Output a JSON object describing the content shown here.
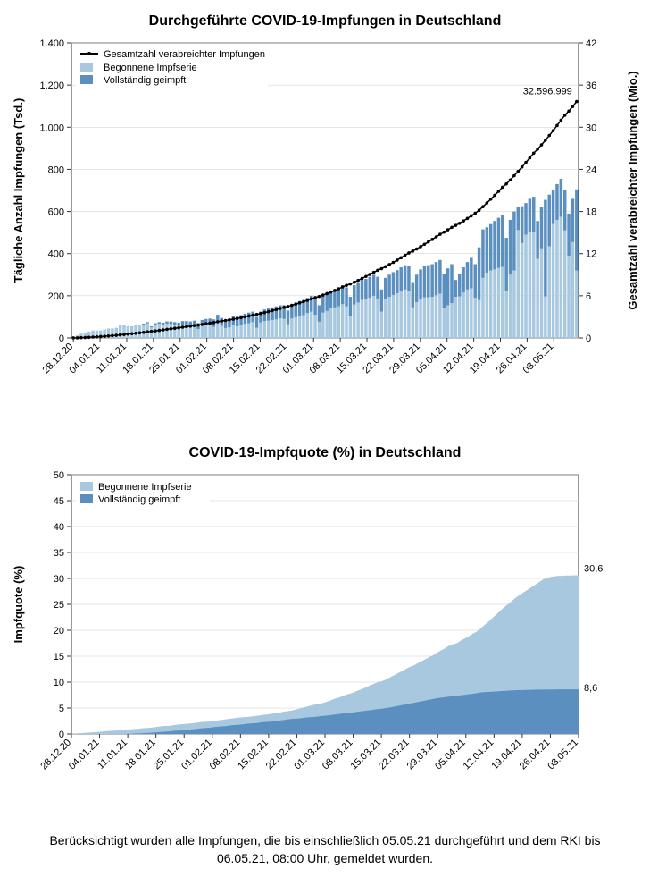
{
  "chart1": {
    "title": "Durchgeführte COVID-19-Impfungen in Deutschland",
    "y_left_label": "Tägliche Anzahl Impfungen (Tsd.)",
    "y_right_label": "Gesamtzahl verabreichter Impfungen (Mio.)",
    "y_left_ticks": [
      0,
      200,
      400,
      600,
      800,
      "1.000",
      "1.200",
      "1.400"
    ],
    "y_left_max": 1400,
    "y_right_ticks": [
      0,
      6,
      12,
      18,
      24,
      30,
      36,
      42
    ],
    "y_right_max": 42,
    "legend": [
      {
        "label": "Gesamtzahl verabreichter Impfungen",
        "type": "line",
        "color": "#000000"
      },
      {
        "label": "Begonnene Impfserie",
        "type": "box",
        "color": "#a8c8e0"
      },
      {
        "label": "Vollständig geimpft",
        "type": "box",
        "color": "#5a8fc0"
      }
    ],
    "annotation_value": "32.596.999",
    "colors": {
      "bar_light": "#a8c8e0",
      "bar_dark": "#5a8fc0",
      "line": "#000000",
      "grid": "#cccccc",
      "axis": "#333333",
      "plot_bg": "#ffffff"
    }
  },
  "chart2": {
    "title": "COVID-19-Impfquote (%) in Deutschland",
    "y_label": "Impfquote (%)",
    "y_ticks": [
      0,
      5,
      10,
      15,
      20,
      25,
      30,
      35,
      40,
      45,
      50
    ],
    "y_max": 50,
    "legend": [
      {
        "label": "Begonnene Impfserie",
        "type": "box",
        "color": "#a8c8e0"
      },
      {
        "label": "Vollständig geimpft",
        "type": "box",
        "color": "#5a8fc0"
      }
    ],
    "annotation_top": "30,6",
    "annotation_bottom": "8,6",
    "colors": {
      "area_light": "#a8c8e0",
      "area_dark": "#5a8fc0",
      "grid": "#cccccc",
      "axis": "#333333"
    }
  },
  "x_labels": [
    "28.12.20",
    "04.01.21",
    "11.01.21",
    "18.01.21",
    "25.01.21",
    "01.02.21",
    "08.02.21",
    "15.02.21",
    "22.02.21",
    "01.03.21",
    "08.03.21",
    "15.03.21",
    "22.03.21",
    "29.03.21",
    "05.04.21",
    "12.04.21",
    "19.04.21",
    "26.04.21",
    "03.05.21"
  ],
  "bars_begun": [
    5,
    12,
    20,
    25,
    30,
    35,
    35,
    35,
    40,
    45,
    45,
    48,
    60,
    60,
    55,
    55,
    62,
    62,
    68,
    75,
    55,
    70,
    75,
    72,
    78,
    78,
    75,
    72,
    80,
    80,
    78,
    82,
    70,
    85,
    90,
    92,
    88,
    110,
    95,
    85,
    90,
    105,
    100,
    108,
    115,
    120,
    125,
    100,
    125,
    135,
    140,
    145,
    150,
    155,
    155,
    130,
    160,
    168,
    175,
    180,
    190,
    200,
    188,
    155,
    200,
    210,
    225,
    230,
    238,
    250,
    240,
    195,
    250,
    260,
    275,
    280,
    290,
    300,
    290,
    230,
    285,
    300,
    312,
    322,
    335,
    345,
    340,
    265,
    300,
    325,
    340,
    345,
    350,
    360,
    370,
    305,
    330,
    350,
    275,
    305,
    335,
    360,
    380,
    350,
    430,
    515,
    525,
    540,
    555,
    570,
    582,
    475,
    560,
    600,
    620,
    625,
    640,
    660,
    670,
    555,
    620,
    655,
    680,
    700,
    730,
    755,
    700,
    590,
    660,
    705
  ],
  "bars_full": [
    0,
    0,
    0,
    0,
    0,
    0,
    0,
    0,
    0,
    0,
    0,
    0,
    0,
    0,
    1,
    1,
    2,
    2,
    5,
    5,
    5,
    8,
    8,
    10,
    10,
    12,
    15,
    15,
    18,
    20,
    22,
    25,
    28,
    28,
    30,
    32,
    35,
    35,
    38,
    38,
    40,
    42,
    45,
    48,
    48,
    50,
    50,
    52,
    52,
    55,
    58,
    60,
    62,
    62,
    65,
    65,
    68,
    70,
    70,
    72,
    72,
    75,
    78,
    78,
    80,
    82,
    85,
    85,
    88,
    90,
    90,
    90,
    92,
    92,
    95,
    98,
    100,
    100,
    105,
    105,
    100,
    105,
    108,
    110,
    112,
    115,
    118,
    120,
    130,
    140,
    148,
    152,
    155,
    158,
    160,
    165,
    175,
    185,
    80,
    108,
    120,
    130,
    145,
    160,
    250,
    230,
    215,
    220,
    230,
    238,
    245,
    250,
    260,
    280,
    108,
    175,
    150,
    160,
    170,
    180,
    195,
    458,
    245,
    160,
    170,
    180,
    190,
    200,
    205,
    385
  ],
  "area_begun": [
    0,
    0.1,
    0.15,
    0.2,
    0.25,
    0.3,
    0.35,
    0.4,
    0.5,
    0.55,
    0.6,
    0.65,
    0.7,
    0.8,
    0.85,
    0.9,
    0.95,
    1,
    1.1,
    1.15,
    1.2,
    1.3,
    1.4,
    1.5,
    1.55,
    1.6,
    1.7,
    1.8,
    1.9,
    1.95,
    2,
    2.1,
    2.2,
    2.3,
    2.35,
    2.4,
    2.5,
    2.6,
    2.7,
    2.8,
    2.9,
    3,
    3.1,
    3.2,
    3.25,
    3.3,
    3.4,
    3.5,
    3.6,
    3.7,
    3.8,
    3.9,
    4,
    4.1,
    4.3,
    4.4,
    4.5,
    4.7,
    4.9,
    5.1,
    5.3,
    5.5,
    5.7,
    5.8,
    6,
    6.2,
    6.5,
    6.8,
    7,
    7.3,
    7.6,
    7.8,
    8.1,
    8.4,
    8.7,
    9,
    9.4,
    9.7,
    10,
    10.2,
    10.5,
    10.9,
    11.3,
    11.7,
    12.1,
    12.5,
    12.9,
    13.2,
    13.6,
    14,
    14.4,
    14.8,
    15.2,
    15.7,
    16.1,
    16.5,
    17,
    17.3,
    17.5,
    18,
    18.4,
    18.8,
    19.3,
    19.7,
    20.3,
    21,
    21.6,
    22.3,
    23,
    23.7,
    24.4,
    25,
    25.6,
    26.3,
    26.8,
    27.3,
    27.8,
    28.3,
    28.8,
    29.3,
    29.8,
    30.1,
    30.3,
    30.4,
    30.5,
    30.5,
    30.55,
    30.55,
    30.6,
    30.6
  ],
  "area_full": [
    0,
    0,
    0,
    0,
    0,
    0,
    0,
    0,
    0,
    0,
    0,
    0,
    0,
    0,
    0.02,
    0.05,
    0.08,
    0.1,
    0.15,
    0.2,
    0.22,
    0.3,
    0.35,
    0.4,
    0.45,
    0.5,
    0.6,
    0.65,
    0.7,
    0.8,
    0.85,
    0.9,
    1,
    1.1,
    1.15,
    1.2,
    1.3,
    1.4,
    1.45,
    1.5,
    1.6,
    1.7,
    1.75,
    1.8,
    1.9,
    2,
    2.05,
    2.1,
    2.2,
    2.3,
    2.35,
    2.4,
    2.5,
    2.6,
    2.7,
    2.8,
    2.9,
    2.95,
    3,
    3.1,
    3.2,
    3.25,
    3.3,
    3.4,
    3.5,
    3.55,
    3.65,
    3.75,
    3.85,
    3.95,
    4,
    4.1,
    4.2,
    4.3,
    4.4,
    4.5,
    4.6,
    4.7,
    4.8,
    4.85,
    5,
    5.1,
    5.25,
    5.4,
    5.55,
    5.7,
    5.85,
    6,
    6.15,
    6.3,
    6.45,
    6.6,
    6.75,
    6.9,
    7,
    7.1,
    7.2,
    7.3,
    7.35,
    7.45,
    7.55,
    7.65,
    7.75,
    7.85,
    8,
    8.05,
    8.1,
    8.15,
    8.2,
    8.25,
    8.3,
    8.35,
    8.4,
    8.42,
    8.45,
    8.47,
    8.5,
    8.52,
    8.53,
    8.55,
    8.56,
    8.57,
    8.58,
    8.58,
    8.59,
    8.59,
    8.59,
    8.6,
    8.6,
    8.6
  ],
  "footnote": "Berücksichtigt wurden alle Impfungen, die bis einschließlich 05.05.21 durchgeführt und dem RKI bis 06.05.21, 08:00 Uhr, gemeldet wurden."
}
